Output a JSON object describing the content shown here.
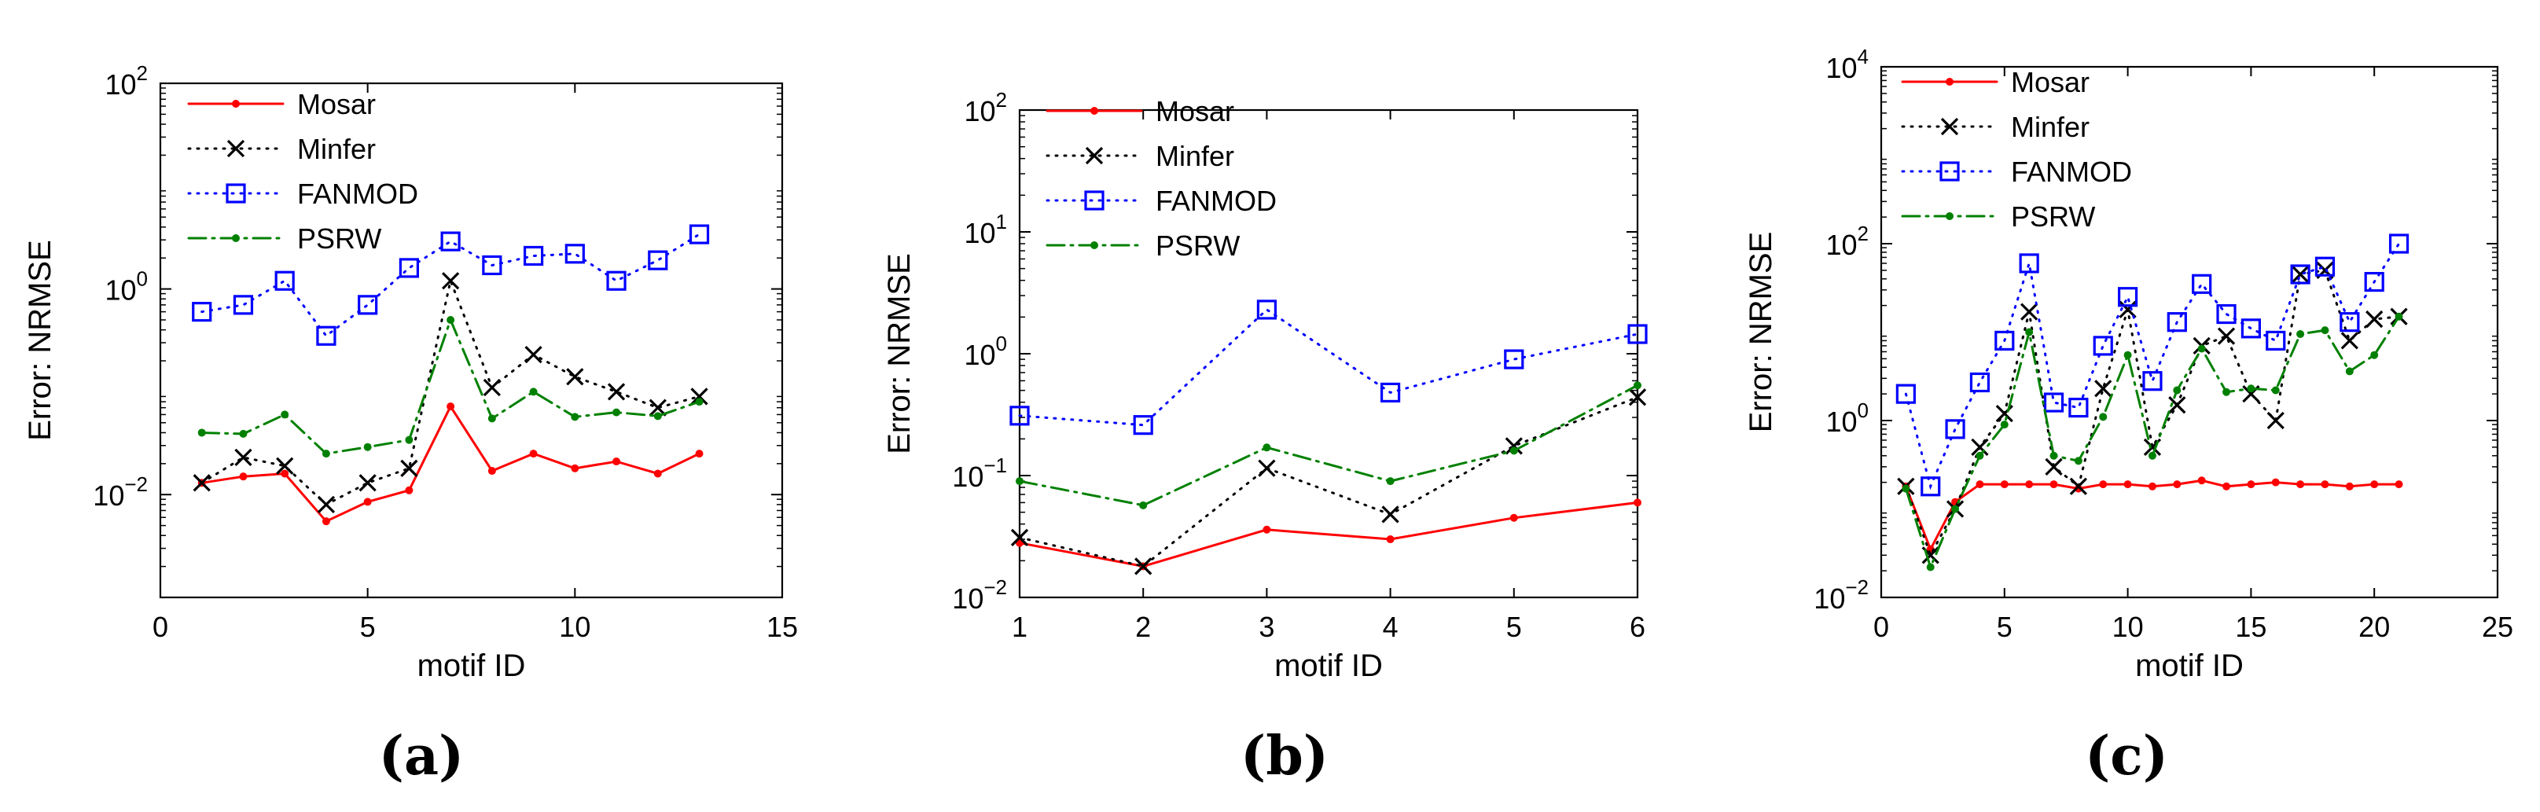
{
  "chart_data": [
    {
      "type": "line",
      "panel_label": "(a)",
      "xlabel": "motif ID",
      "ylabel": "Error: NRMSE",
      "yscale": "log",
      "xlim": [
        0,
        15
      ],
      "ylim": [
        0.001,
        100
      ],
      "xticks": [
        0,
        5,
        10,
        15
      ],
      "yticks": [
        {
          "value": 0.01,
          "base": "10",
          "exp": "−2"
        },
        {
          "value": 1,
          "base": "10",
          "exp": "0"
        },
        {
          "value": 100,
          "base": "10",
          "exp": "2"
        }
      ],
      "legend_position": "top-left",
      "series": [
        {
          "name": "Mosar",
          "style": "solid-dot",
          "color": "#ff0000",
          "x": [
            1,
            2,
            3,
            4,
            5,
            6,
            7,
            8,
            9,
            10,
            11,
            12,
            13
          ],
          "y": [
            0.013,
            0.015,
            0.016,
            0.0055,
            0.0085,
            0.011,
            0.072,
            0.017,
            0.025,
            0.018,
            0.021,
            0.016,
            0.025
          ]
        },
        {
          "name": "Minfer",
          "style": "dotted-x",
          "color": "#000000",
          "x": [
            1,
            2,
            3,
            4,
            5,
            6,
            7,
            8,
            9,
            10,
            11,
            12,
            13
          ],
          "y": [
            0.013,
            0.023,
            0.019,
            0.008,
            0.013,
            0.018,
            1.2,
            0.11,
            0.23,
            0.14,
            0.1,
            0.07,
            0.09
          ]
        },
        {
          "name": "FANMOD",
          "style": "dotted-square",
          "color": "#0000ff",
          "x": [
            1,
            2,
            3,
            4,
            5,
            6,
            7,
            8,
            9,
            10,
            11,
            12,
            13
          ],
          "y": [
            0.6,
            0.7,
            1.2,
            0.35,
            0.7,
            1.6,
            2.9,
            1.7,
            2.1,
            2.2,
            1.2,
            1.9,
            3.4
          ]
        },
        {
          "name": "PSRW",
          "style": "dashdot-dot",
          "color": "#008000",
          "x": [
            1,
            2,
            3,
            4,
            5,
            6,
            7,
            8,
            9,
            10,
            11,
            12,
            13
          ],
          "y": [
            0.04,
            0.039,
            0.06,
            0.025,
            0.029,
            0.034,
            0.5,
            0.055,
            0.1,
            0.057,
            0.063,
            0.058,
            0.08
          ]
        }
      ]
    },
    {
      "type": "line",
      "panel_label": "(b)",
      "xlabel": "motif ID",
      "ylabel": "Error: NRMSE",
      "yscale": "log",
      "xlim": [
        1,
        6
      ],
      "ylim": [
        0.01,
        100
      ],
      "xticks": [
        1,
        2,
        3,
        4,
        5,
        6
      ],
      "yticks": [
        {
          "value": 0.01,
          "base": "10",
          "exp": "−2"
        },
        {
          "value": 0.1,
          "base": "10",
          "exp": "−1"
        },
        {
          "value": 1,
          "base": "10",
          "exp": "0"
        },
        {
          "value": 10,
          "base": "10",
          "exp": "1"
        },
        {
          "value": 100,
          "base": "10",
          "exp": "2"
        }
      ],
      "legend_position": "top-left",
      "series": [
        {
          "name": "Mosar",
          "style": "solid-dot",
          "color": "#ff0000",
          "x": [
            1,
            2,
            3,
            4,
            5,
            6
          ],
          "y": [
            0.028,
            0.018,
            0.036,
            0.03,
            0.045,
            0.06
          ]
        },
        {
          "name": "Minfer",
          "style": "dotted-x",
          "color": "#000000",
          "x": [
            1,
            2,
            3,
            4,
            5,
            6
          ],
          "y": [
            0.031,
            0.018,
            0.115,
            0.048,
            0.175,
            0.44
          ]
        },
        {
          "name": "FANMOD",
          "style": "dotted-square",
          "color": "#0000ff",
          "x": [
            1,
            2,
            3,
            4,
            5,
            6
          ],
          "y": [
            0.31,
            0.26,
            2.3,
            0.48,
            0.9,
            1.45
          ]
        },
        {
          "name": "PSRW",
          "style": "dashdot-dot",
          "color": "#008000",
          "x": [
            1,
            2,
            3,
            4,
            5,
            6
          ],
          "y": [
            0.09,
            0.057,
            0.17,
            0.09,
            0.16,
            0.55
          ]
        }
      ]
    },
    {
      "type": "line",
      "panel_label": "(c)",
      "xlabel": "motif ID",
      "ylabel": "Error: NRMSE",
      "yscale": "log",
      "xlim": [
        0,
        25
      ],
      "ylim": [
        0.01,
        10000
      ],
      "xticks": [
        0,
        5,
        10,
        15,
        20,
        25
      ],
      "yticks": [
        {
          "value": 0.01,
          "base": "10",
          "exp": "−2"
        },
        {
          "value": 1,
          "base": "10",
          "exp": "0"
        },
        {
          "value": 100,
          "base": "10",
          "exp": "2"
        },
        {
          "value": 10000,
          "base": "10",
          "exp": "4"
        }
      ],
      "legend_position": "top-left",
      "series": [
        {
          "name": "Mosar",
          "style": "solid-dot",
          "color": "#ff0000",
          "x": [
            1,
            2,
            3,
            4,
            5,
            6,
            7,
            8,
            9,
            10,
            11,
            12,
            13,
            14,
            15,
            16,
            17,
            18,
            19,
            20,
            21
          ],
          "y": [
            0.18,
            0.035,
            0.12,
            0.19,
            0.19,
            0.19,
            0.19,
            0.17,
            0.19,
            0.19,
            0.18,
            0.19,
            0.21,
            0.18,
            0.19,
            0.2,
            0.19,
            0.19,
            0.18,
            0.19,
            0.19
          ]
        },
        {
          "name": "Minfer",
          "style": "dotted-x",
          "color": "#000000",
          "x": [
            1,
            2,
            3,
            4,
            5,
            6,
            7,
            8,
            9,
            10,
            11,
            12,
            13,
            14,
            15,
            16,
            17,
            18,
            19,
            20,
            21
          ],
          "y": [
            0.18,
            0.03,
            0.1,
            0.5,
            1.2,
            17,
            0.3,
            0.18,
            2.3,
            18,
            0.5,
            1.5,
            7,
            9,
            2,
            1,
            45,
            50,
            8,
            14,
            15
          ]
        },
        {
          "name": "FANMOD",
          "style": "dotted-square",
          "color": "#0000ff",
          "x": [
            1,
            2,
            3,
            4,
            5,
            6,
            7,
            8,
            9,
            10,
            11,
            12,
            13,
            14,
            15,
            16,
            17,
            18,
            19,
            20,
            21
          ],
          "y": [
            2,
            0.18,
            0.8,
            2.7,
            8,
            60,
            1.6,
            1.4,
            7,
            25,
            2.8,
            13,
            35,
            16,
            11,
            8,
            45,
            55,
            13,
            37,
            100
          ]
        },
        {
          "name": "PSRW",
          "style": "dashdot-dot",
          "color": "#008000",
          "x": [
            1,
            2,
            3,
            4,
            5,
            6,
            7,
            8,
            9,
            10,
            11,
            12,
            13,
            14,
            15,
            16,
            17,
            18,
            19,
            20,
            21
          ],
          "y": [
            0.17,
            0.022,
            0.1,
            0.4,
            0.9,
            10,
            0.4,
            0.35,
            1.1,
            5.5,
            0.4,
            2.2,
            6.5,
            2.1,
            2.3,
            2.2,
            9.5,
            10.5,
            3.6,
            5.5,
            15
          ]
        }
      ]
    }
  ]
}
